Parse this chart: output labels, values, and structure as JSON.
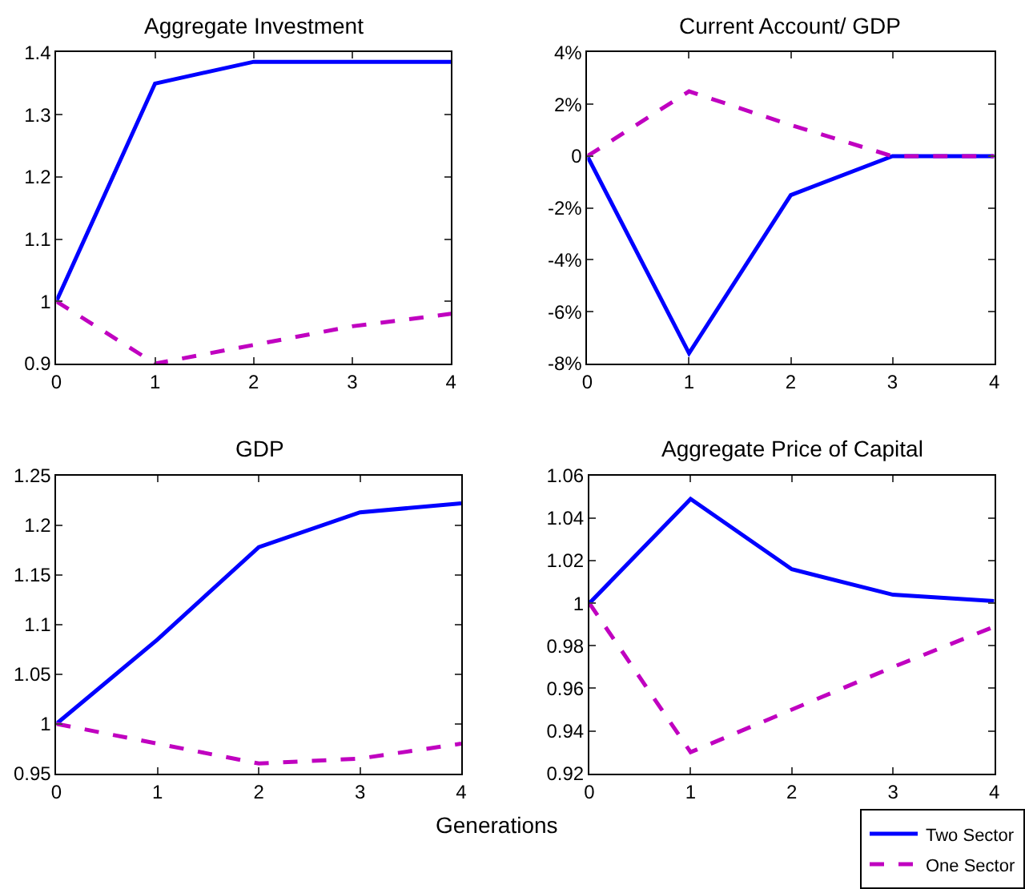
{
  "chart_data": [
    {
      "type": "line",
      "title": "Aggregate Investment",
      "x": [
        0,
        1,
        2,
        3,
        4
      ],
      "xlim": [
        0,
        4
      ],
      "xticks": [
        0,
        1,
        2,
        3,
        4
      ],
      "ylim": [
        0.9,
        1.4
      ],
      "yticks": [
        0.9,
        1,
        1.1,
        1.2,
        1.3,
        1.4
      ],
      "grid": false,
      "legend": false,
      "marker": "none",
      "series": [
        {
          "color": "#0000ff",
          "line_style": "solid",
          "values": [
            1,
            1.35,
            1.385,
            1.385,
            1.385
          ]
        },
        {
          "color": "#c000c0",
          "line_style": "dashed",
          "values": [
            1,
            0.9,
            0.93,
            0.96,
            0.98
          ]
        }
      ]
    },
    {
      "type": "line",
      "title": "Current Account/ GDP",
      "x": [
        0,
        1,
        2,
        3,
        4
      ],
      "xlim": [
        0,
        4
      ],
      "xticks": [
        0,
        1,
        2,
        3,
        4
      ],
      "ylim": [
        -8,
        4
      ],
      "yticks": [
        {
          "value": -8,
          "label": "-8%"
        },
        {
          "value": -6,
          "label": "-6%"
        },
        {
          "value": -4,
          "label": "-4%"
        },
        {
          "value": -2,
          "label": "-2%"
        },
        0,
        {
          "value": 2,
          "label": "2%"
        },
        {
          "value": 4,
          "label": "4%"
        }
      ],
      "grid": false,
      "legend": false,
      "marker": "none",
      "series": [
        {
          "color": "#0000ff",
          "line_style": "solid",
          "values": [
            0,
            -7.6,
            -1.5,
            0,
            0
          ]
        },
        {
          "color": "#c000c0",
          "line_style": "dashed",
          "values": [
            0,
            2.5,
            1.2,
            0,
            0
          ]
        }
      ]
    },
    {
      "type": "line",
      "title": "GDP",
      "xlabel": "Generations",
      "x": [
        0,
        1,
        2,
        3,
        4
      ],
      "xlim": [
        0,
        4
      ],
      "xticks": [
        0,
        1,
        2,
        3,
        4
      ],
      "ylim": [
        0.95,
        1.25
      ],
      "yticks": [
        0.95,
        1,
        1.05,
        1.1,
        1.15,
        1.2,
        1.25
      ],
      "grid": false,
      "legend": false,
      "marker": "none",
      "series": [
        {
          "color": "#0000ff",
          "line_style": "solid",
          "values": [
            1,
            1.085,
            1.178,
            1.213,
            1.222
          ]
        },
        {
          "color": "#c000c0",
          "line_style": "dashed",
          "values": [
            1,
            0.98,
            0.96,
            0.965,
            0.98
          ]
        }
      ]
    },
    {
      "type": "line",
      "title": "Aggregate Price of Capital",
      "x": [
        0,
        1,
        2,
        3,
        4
      ],
      "xlim": [
        0,
        4
      ],
      "xticks": [
        0,
        1,
        2,
        3,
        4
      ],
      "ylim": [
        0.92,
        1.06
      ],
      "yticks": [
        0.92,
        0.94,
        0.96,
        0.98,
        1,
        1.02,
        1.04,
        1.06
      ],
      "grid": false,
      "legend": "bottom right",
      "marker": "none",
      "series": [
        {
          "name": "Two Sector",
          "color": "#0000ff",
          "line_style": "solid",
          "values": [
            1,
            1.049,
            1.016,
            1.004,
            1.001
          ]
        },
        {
          "name": "One Sector",
          "color": "#c000c0",
          "line_style": "dashed",
          "values": [
            1,
            0.93,
            0.95,
            0.97,
            0.989
          ]
        }
      ]
    }
  ]
}
